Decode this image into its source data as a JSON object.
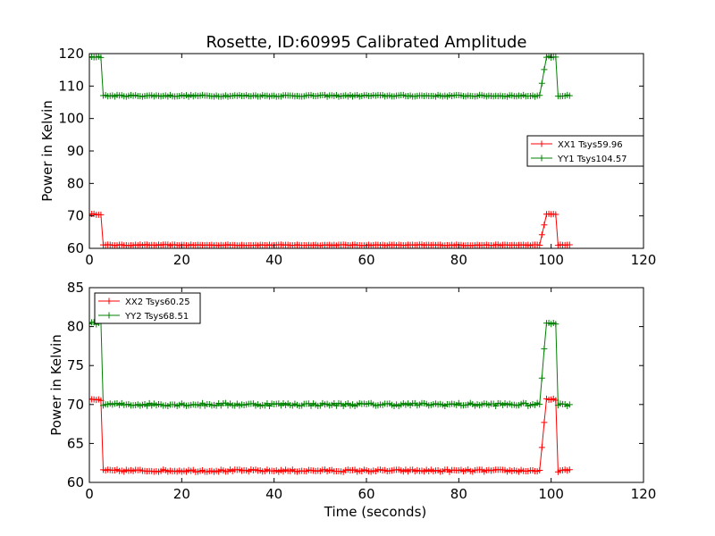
{
  "chart_data": [
    {
      "type": "line",
      "title": "Rosette, ID:60995 Calibrated Amplitude",
      "xlabel": "",
      "ylabel": "Power in Kelvin",
      "xlim": [
        0,
        120
      ],
      "ylim": [
        60,
        120
      ],
      "xticks": [
        0,
        20,
        40,
        60,
        80,
        100,
        120
      ],
      "yticks": [
        60,
        70,
        80,
        90,
        100,
        110,
        120
      ],
      "legend_position": "center-right",
      "series": [
        {
          "name": "XX1 Tsys59.96",
          "color": "#ff0000",
          "base": 61.0,
          "high": 70.5,
          "high_before": 2.5,
          "fall_time": 3.0,
          "rise_start": 97.5,
          "rise_end": 101.5,
          "low_after": 104,
          "noise": 0.15
        },
        {
          "name": "YY1 Tsys104.57",
          "color": "#008000",
          "base": 107.0,
          "high": 119.0,
          "high_before": 2.5,
          "fall_time": 3.0,
          "rise_start": 97.5,
          "rise_end": 101.5,
          "low_after": 104,
          "noise": 0.25
        }
      ]
    },
    {
      "type": "line",
      "title": "",
      "xlabel": "Time (seconds)",
      "ylabel": "Power in Kelvin",
      "xlim": [
        0,
        120
      ],
      "ylim": [
        60,
        85
      ],
      "xticks": [
        0,
        20,
        40,
        60,
        80,
        100,
        120
      ],
      "yticks": [
        60,
        65,
        70,
        75,
        80,
        85
      ],
      "legend_position": "top-left",
      "series": [
        {
          "name": "XX2 Tsys60.25",
          "color": "#ff0000",
          "base": 61.5,
          "high": 70.6,
          "high_before": 2.5,
          "fall_time": 3.0,
          "rise_start": 97.5,
          "rise_end": 101.5,
          "low_after": 104,
          "noise": 0.15
        },
        {
          "name": "YY2 Tsys68.51",
          "color": "#008000",
          "base": 70.0,
          "high": 80.5,
          "high_before": 2.5,
          "fall_time": 3.0,
          "rise_start": 97.5,
          "rise_end": 101.5,
          "low_after": 104,
          "noise": 0.2
        }
      ]
    }
  ]
}
